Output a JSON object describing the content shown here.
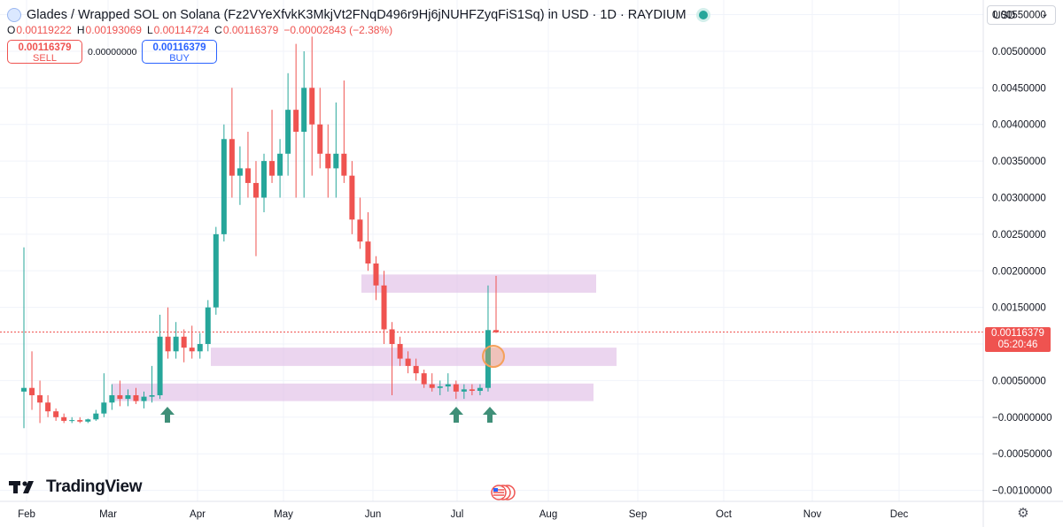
{
  "header": {
    "title": "Glades / Wrapped SOL on Solana (Fz2VYeXfvkK3MkjVt2FNqD496r9Hj6jNUHFZyqFiS1Sq) in USD · 1D · RAYDIUM",
    "ohlc": {
      "o_label": "O",
      "o": "0.00119222",
      "h_label": "H",
      "h": "0.00193069",
      "l_label": "L",
      "l": "0.00114724",
      "c_label": "C",
      "c": "0.00116379",
      "change": "−0.00002843 (−2.38%)"
    }
  },
  "trade": {
    "sell_price": "0.00116379",
    "sell_label": "SELL",
    "spread": "0.00000000",
    "buy_price": "0.00116379",
    "buy_label": "BUY"
  },
  "currency_select": "USD",
  "price_label": {
    "price": "0.00116379",
    "countdown": "05:20:46"
  },
  "brand": "TradingView",
  "colors": {
    "up": "#26a69a",
    "down": "#ef5350",
    "zone": "#e1bee7",
    "arrow": "#3f8f78",
    "circle": "#f5a05a",
    "grid": "#f0f3fa"
  },
  "chart_data": {
    "type": "candlestick",
    "title": "",
    "xlabel": "",
    "ylabel": "",
    "x_ticks": [
      "Feb",
      "Mar",
      "Apr",
      "May",
      "Jun",
      "Jul",
      "Aug",
      "Sep",
      "Oct",
      "Nov",
      "Dec"
    ],
    "y_ticks": [
      "0.00550000",
      "0.00500000",
      "0.00450000",
      "0.00400000",
      "0.00350000",
      "0.00300000",
      "0.00250000",
      "0.00200000",
      "0.00150000",
      "0.00100000",
      "0.00050000",
      "−0.00000000",
      "−0.00050000",
      "−0.00100000"
    ],
    "ylim": [
      -0.00115,
      0.0057
    ],
    "grid": true,
    "last_price": 0.00116379,
    "series": [
      {
        "values_note": "",
        "points": [
          [
            "Feb",
            0.00035,
            0.00232,
            -0.00015,
            0.0004
          ],
          [
            "Feb",
            0.0004,
            0.0009,
            0.0001,
            0.0003
          ],
          [
            "Feb",
            0.0003,
            0.0005,
            -8e-05,
            0.0002
          ],
          [
            "Feb",
            0.0002,
            0.0003,
            0.0,
            8e-05
          ],
          [
            "Feb",
            8e-05,
            0.00012,
            -5e-05,
            0.0
          ],
          [
            "Feb",
            0.0,
            5e-05,
            -8e-05,
            -5e-05
          ],
          [
            "Feb",
            -5e-05,
            0.0,
            -8e-05,
            -4e-05
          ],
          [
            "Mar",
            -4e-05,
            0.0,
            -8e-05,
            -6e-05
          ],
          [
            "Mar",
            -6e-05,
            -2e-05,
            -8e-05,
            -3e-05
          ],
          [
            "Mar",
            -3e-05,
            0.0001,
            -5e-05,
            5e-05
          ],
          [
            "Mar",
            5e-05,
            0.0006,
            0.0,
            0.0002
          ],
          [
            "Mar",
            0.0002,
            0.00045,
            0.0001,
            0.0003
          ],
          [
            "Mar",
            0.0003,
            0.0005,
            0.00015,
            0.00025
          ],
          [
            "Mar",
            0.00025,
            0.00038,
            0.00015,
            0.0003
          ],
          [
            "Mar",
            0.0003,
            0.0004,
            0.00018,
            0.00022
          ],
          [
            "Mar",
            0.00022,
            0.00035,
            0.00012,
            0.00028
          ],
          [
            "Mar",
            0.00028,
            0.0007,
            0.0002,
            0.0003
          ],
          [
            "Apr",
            0.0003,
            0.0014,
            0.00025,
            0.0011
          ],
          [
            "Apr",
            0.0011,
            0.0015,
            0.0008,
            0.0009
          ],
          [
            "Apr",
            0.0009,
            0.0013,
            0.0008,
            0.0011
          ],
          [
            "Apr",
            0.0011,
            0.0012,
            0.00075,
            0.00095
          ],
          [
            "Apr",
            0.00095,
            0.00125,
            0.0008,
            0.0009
          ],
          [
            "Apr",
            0.0009,
            0.00115,
            0.0008,
            0.001
          ],
          [
            "Apr",
            0.001,
            0.0016,
            0.0009,
            0.0015
          ],
          [
            "Apr",
            0.0015,
            0.0026,
            0.0014,
            0.0025
          ],
          [
            "Apr",
            0.0025,
            0.004,
            0.0024,
            0.0038
          ],
          [
            "Apr",
            0.0038,
            0.0045,
            0.003,
            0.0033
          ],
          [
            "Apr",
            0.0033,
            0.0037,
            0.0029,
            0.0034
          ],
          [
            "Apr",
            0.0034,
            0.0039,
            0.003,
            0.0032
          ],
          [
            "Apr",
            0.0032,
            0.0035,
            0.0022,
            0.003
          ],
          [
            "Apr",
            0.003,
            0.0036,
            0.0028,
            0.0035
          ],
          [
            "Apr",
            0.0035,
            0.0042,
            0.0032,
            0.0033
          ],
          [
            "May",
            0.0033,
            0.0038,
            0.003,
            0.0036
          ],
          [
            "May",
            0.0036,
            0.0047,
            0.0033,
            0.0042
          ],
          [
            "May",
            0.0042,
            0.0051,
            0.003,
            0.0039
          ],
          [
            "May",
            0.0039,
            0.005,
            0.003,
            0.0045
          ],
          [
            "May",
            0.0045,
            0.0052,
            0.0033,
            0.004
          ],
          [
            "May",
            0.004,
            0.0045,
            0.0034,
            0.0036
          ],
          [
            "May",
            0.0036,
            0.004,
            0.003,
            0.0034
          ],
          [
            "May",
            0.0034,
            0.0043,
            0.003,
            0.0036
          ],
          [
            "May",
            0.0036,
            0.0046,
            0.0032,
            0.0033
          ],
          [
            "May",
            0.0033,
            0.0035,
            0.0025,
            0.0027
          ],
          [
            "May",
            0.0027,
            0.003,
            0.0023,
            0.0024
          ],
          [
            "May",
            0.0024,
            0.0028,
            0.002,
            0.0021
          ],
          [
            "Jun",
            0.0021,
            0.0022,
            0.0016,
            0.0018
          ],
          [
            "Jun",
            0.0018,
            0.002,
            0.001,
            0.0012
          ],
          [
            "Jun",
            0.0012,
            0.0013,
            0.0003,
            0.001
          ],
          [
            "Jun",
            0.001,
            0.0011,
            0.0007,
            0.0008
          ],
          [
            "Jun",
            0.0008,
            0.0009,
            0.0006,
            0.0007
          ],
          [
            "Jun",
            0.0007,
            0.0008,
            0.0005,
            0.0006
          ],
          [
            "Jun",
            0.0006,
            0.00065,
            0.0004,
            0.00045
          ],
          [
            "Jun",
            0.00045,
            0.0006,
            0.00035,
            0.0004
          ],
          [
            "Jun",
            0.0004,
            0.0005,
            0.0003,
            0.00042
          ],
          [
            "Jun",
            0.00042,
            0.0006,
            0.00035,
            0.00045
          ],
          [
            "Jul",
            0.00045,
            0.0005,
            0.00025,
            0.00035
          ],
          [
            "Jul",
            0.00035,
            0.00045,
            0.00025,
            0.00038
          ],
          [
            "Jul",
            0.00038,
            0.00045,
            0.0003,
            0.00036
          ],
          [
            "Jul",
            0.00036,
            0.00045,
            0.0003,
            0.0004
          ],
          [
            "Jul",
            0.0004,
            0.0018,
            0.00035,
            0.00119
          ],
          [
            "Jul",
            0.00119,
            0.00193,
            0.00115,
            0.00116
          ]
        ]
      }
    ],
    "zones": [
      {
        "from": "May",
        "to": "Aug",
        "top": 0.00195,
        "bottom": 0.0017
      },
      {
        "from": "Apr",
        "to": "Aug",
        "top": 0.00095,
        "bottom": 0.0007
      },
      {
        "from": "Mar",
        "to": "Aug",
        "top": 0.00046,
        "bottom": 0.00022
      }
    ]
  }
}
